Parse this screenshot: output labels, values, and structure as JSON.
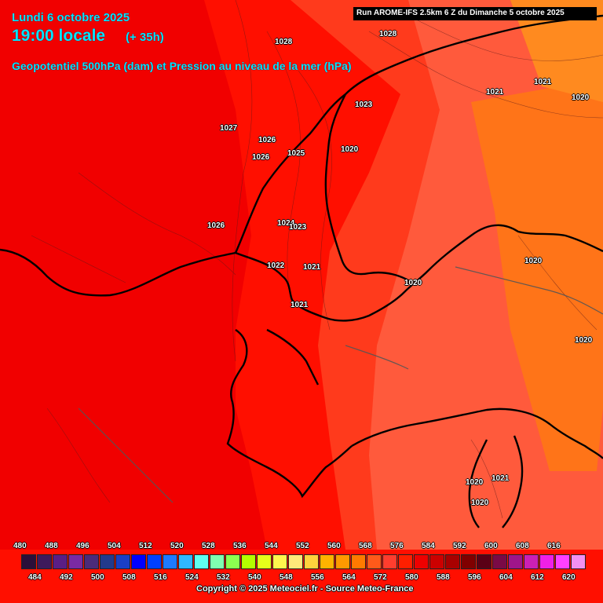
{
  "header": {
    "date": "Lundi 6 octobre 2025",
    "time": "19:00 locale",
    "lead": "(+ 35h)",
    "product": "Geopotentiel 500hPa (dam) et Pression au niveau de la mer (hPa)",
    "run": "Run AROME-IFS 2.5km 6 Z du Dimanche 5 octobre 2025"
  },
  "pressure_labels": [
    "1028",
    "1028",
    "1021",
    "1021",
    "1020",
    "1023",
    "1027",
    "1026",
    "1020",
    "1026",
    "1025",
    "1026",
    "1024",
    "1023",
    "1022",
    "1021",
    "1021",
    "1020",
    "1020",
    "1020",
    "1020",
    "1021",
    "1020"
  ],
  "legend": {
    "top_values": [
      "480",
      "488",
      "496",
      "504",
      "512",
      "520",
      "528",
      "536",
      "544",
      "552",
      "560",
      "568",
      "576",
      "584",
      "592",
      "600",
      "608",
      "616"
    ],
    "bottom_values": [
      "484",
      "492",
      "500",
      "508",
      "516",
      "524",
      "532",
      "540",
      "548",
      "556",
      "564",
      "572",
      "580",
      "588",
      "596",
      "604",
      "612",
      "620"
    ],
    "colors": [
      "#2b0f3a",
      "#3e1a5c",
      "#5a1e86",
      "#7a2aa3",
      "#4b2b7a",
      "#233a8c",
      "#1a3fc6",
      "#0000ff",
      "#0040ff",
      "#1e7aff",
      "#2fb8ff",
      "#5ffff0",
      "#7fffb0",
      "#8cff50",
      "#b4ff00",
      "#e6ff1a",
      "#fff54d",
      "#ffe97a",
      "#ffd23d",
      "#ffb300",
      "#ff9900",
      "#ff7a00",
      "#ff5a1a",
      "#ff3d2e",
      "#ff1f00",
      "#ee0000",
      "#cc0000",
      "#a80000",
      "#800000",
      "#5a0016",
      "#7a0a46",
      "#a0158a",
      "#cc20b4",
      "#f020e6",
      "#ff40ff",
      "#f390f0"
    ],
    "copyright": "Copyright © 2025 Meteociel.fr - Source Meteo-France"
  },
  "map_colors": {
    "deep_red": "#f50000",
    "red": "#ff1a00",
    "red_orange": "#ff3c1e",
    "orange_red": "#ff5a3a",
    "orange": "#ff7a1a",
    "light_orange": "#ff8a1f",
    "coast": "#000000"
  }
}
